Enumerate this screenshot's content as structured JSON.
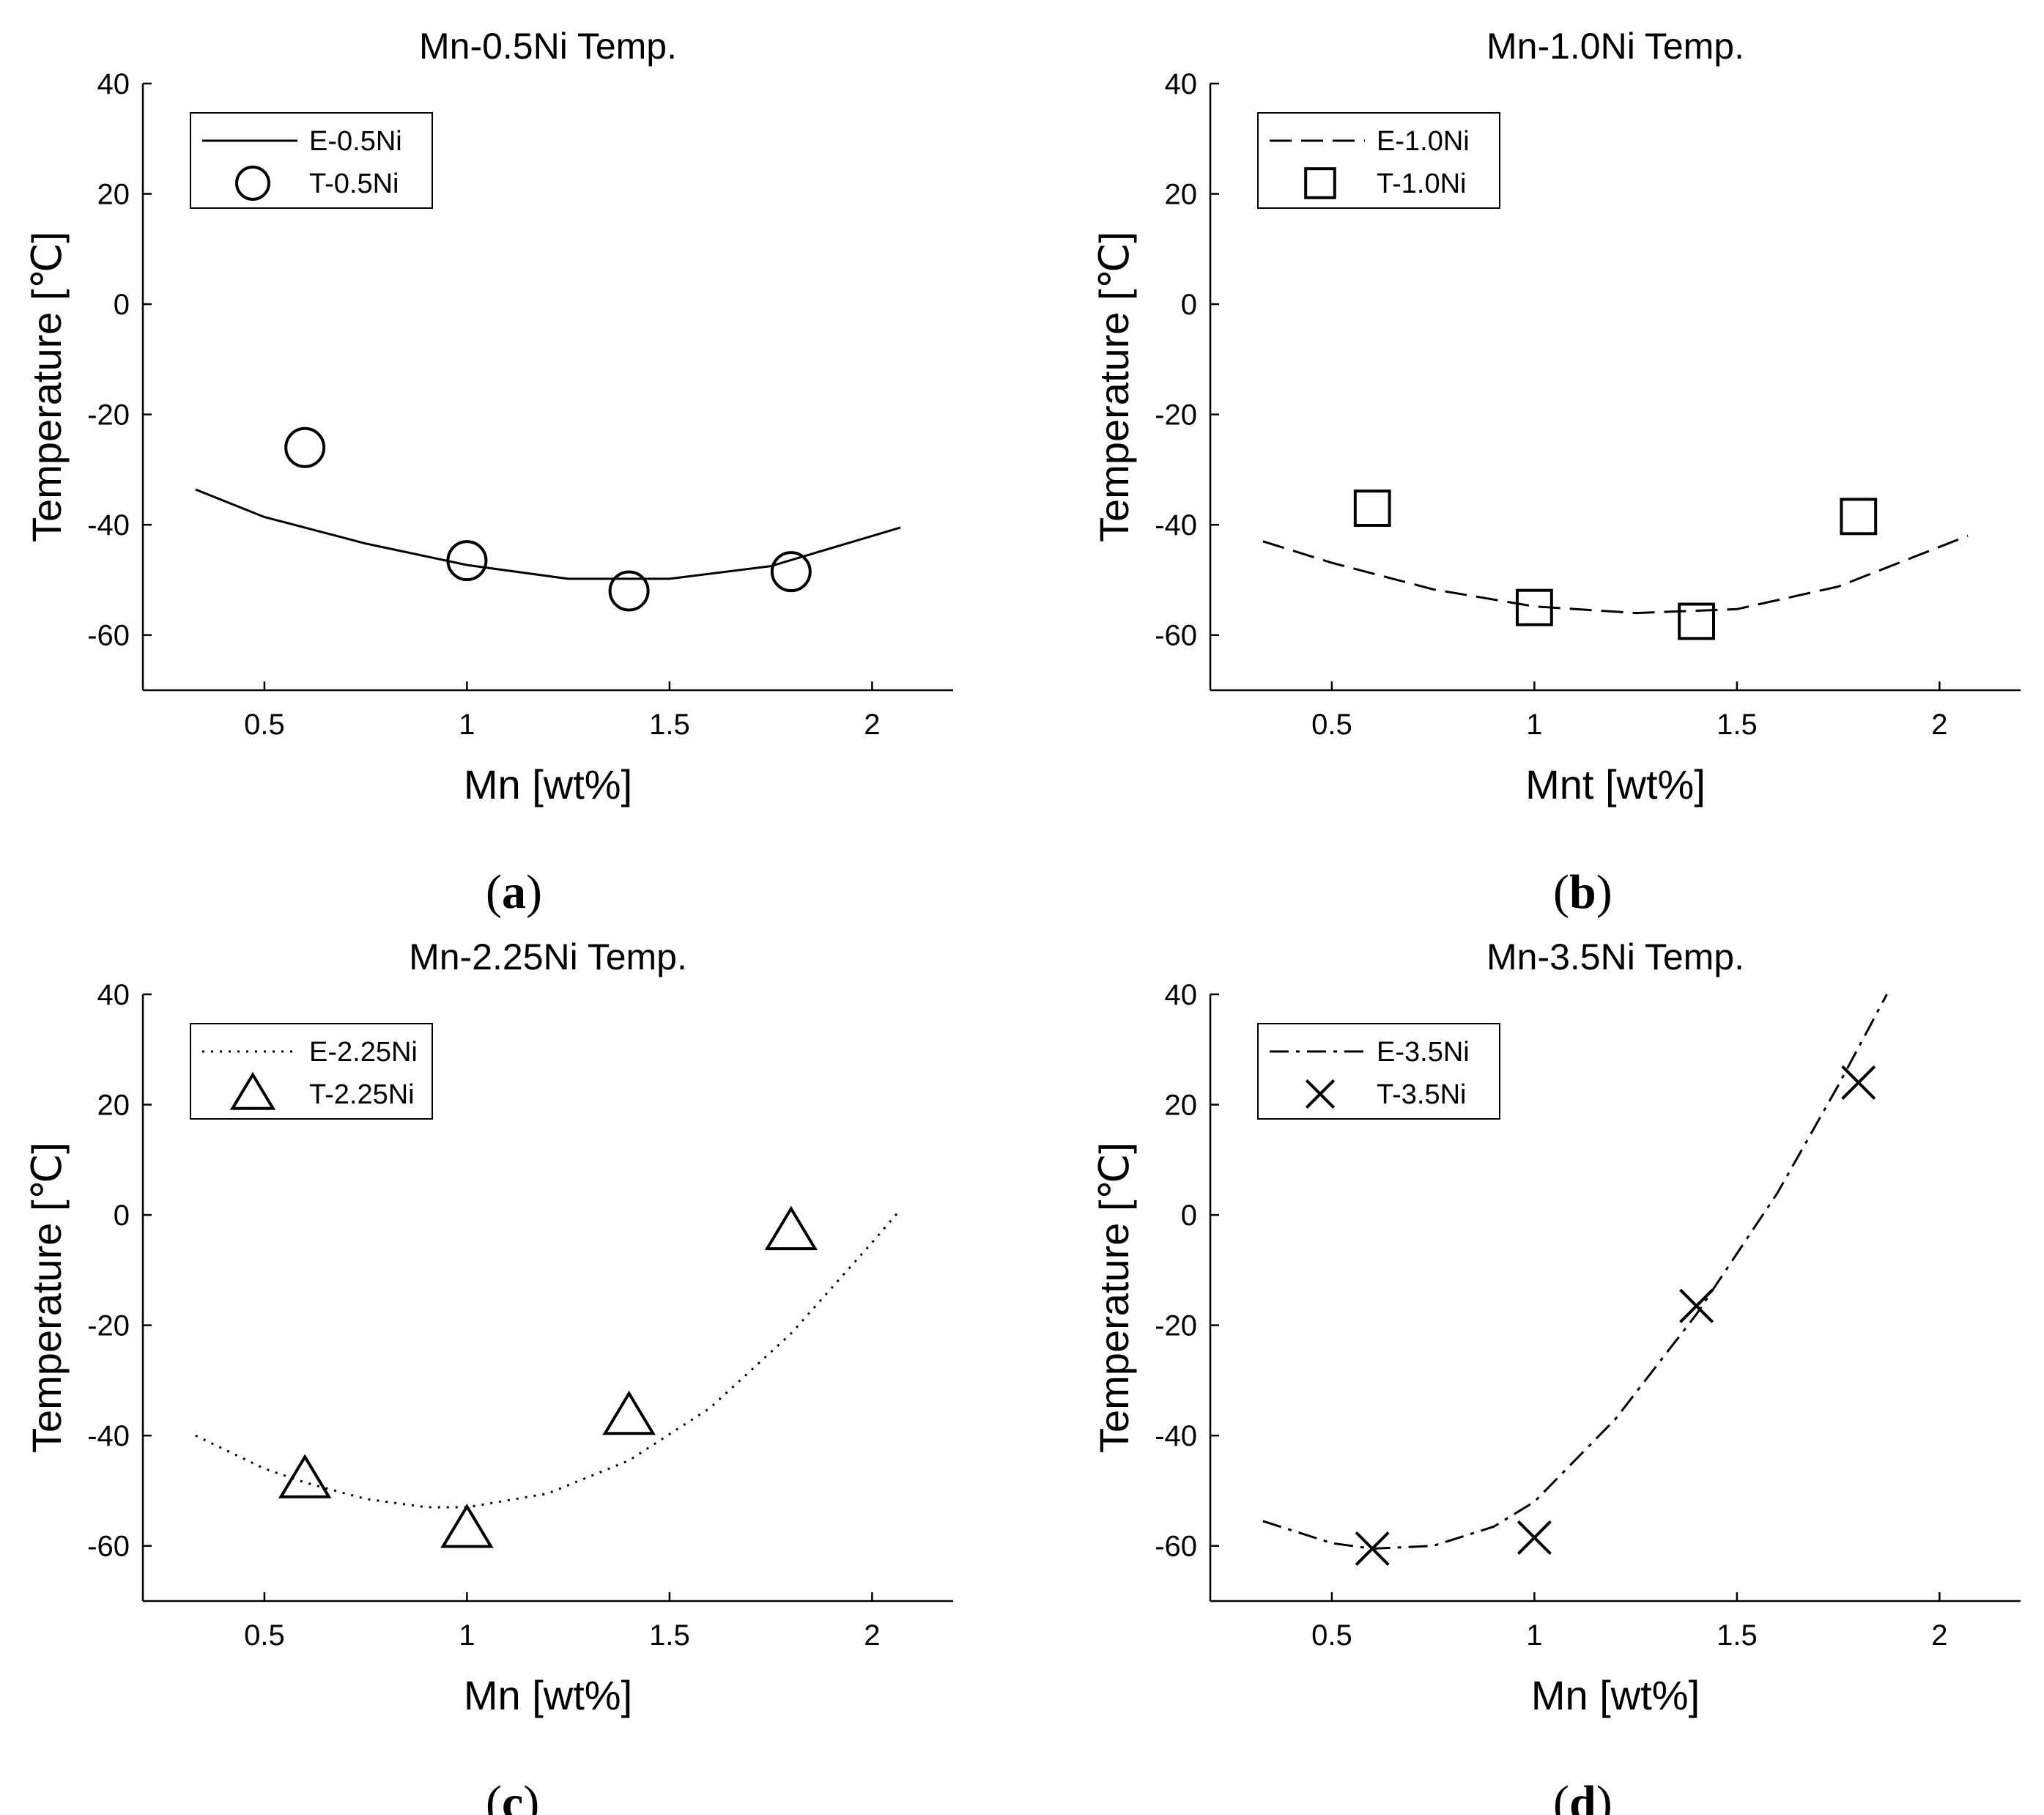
{
  "figure": {
    "background": "#ffffff",
    "ink": "#000000"
  },
  "chart_data": [
    {
      "type": "line",
      "panel_label": "a",
      "title": "Mn-0.5Ni Temp.",
      "xlabel": "Mn [wt%]",
      "ylabel": "Temperature [℃]",
      "xlim": [
        0.2,
        2.2
      ],
      "ylim": [
        -70,
        40
      ],
      "xticks": [
        0.5,
        1,
        1.5,
        2
      ],
      "xtick_labels": [
        "0.5",
        "1",
        "1.5",
        "2"
      ],
      "yticks": [
        -60,
        -40,
        -20,
        0,
        20,
        40
      ],
      "ytick_labels": [
        "-60",
        "-40",
        "-20",
        "0",
        "20",
        "40"
      ],
      "grid": false,
      "legend_position": "top-left",
      "series": [
        {
          "name": "E-0.5Ni",
          "kind": "line",
          "line_style": "solid",
          "x": [
            0.33,
            0.5,
            0.75,
            1.0,
            1.25,
            1.5,
            1.75,
            2.07
          ],
          "y": [
            -33.6,
            -38.6,
            -43.4,
            -47.3,
            -49.8,
            -49.8,
            -47.5,
            -40.5
          ]
        },
        {
          "name": "T-0.5Ni",
          "kind": "scatter",
          "marker": "circle",
          "x": [
            0.6,
            1.0,
            1.4,
            1.8
          ],
          "y": [
            -26,
            -46.5,
            -52,
            -48.5
          ]
        }
      ]
    },
    {
      "type": "line",
      "panel_label": "b",
      "title": "Mn-1.0Ni Temp.",
      "xlabel": "Mnt [wt%]",
      "ylabel": "Temperature [℃]",
      "xlim": [
        0.2,
        2.2
      ],
      "ylim": [
        -70,
        40
      ],
      "xticks": [
        0.5,
        1,
        1.5,
        2
      ],
      "xtick_labels": [
        "0.5",
        "1",
        "1.5",
        "2"
      ],
      "yticks": [
        -60,
        -40,
        -20,
        0,
        20,
        40
      ],
      "ytick_labels": [
        "-60",
        "-40",
        "-20",
        "0",
        "20",
        "40"
      ],
      "grid": false,
      "legend_position": "top-left",
      "series": [
        {
          "name": "E-1.0Ni",
          "kind": "line",
          "line_style": "dashed",
          "x": [
            0.33,
            0.5,
            0.75,
            1.0,
            1.25,
            1.5,
            1.75,
            2.07
          ],
          "y": [
            -43,
            -46.9,
            -51.7,
            -54.8,
            -56.0,
            -55.3,
            -51.2,
            -42
          ]
        },
        {
          "name": "T-1.0Ni",
          "kind": "scatter",
          "marker": "square",
          "x": [
            0.6,
            1.0,
            1.4,
            1.8
          ],
          "y": [
            -37,
            -55,
            -57.5,
            -38.5
          ]
        }
      ]
    },
    {
      "type": "line",
      "panel_label": "c",
      "title": "Mn-2.25Ni Temp.",
      "xlabel": "Mn [wt%]",
      "ylabel": "Temperature [℃]",
      "xlim": [
        0.2,
        2.2
      ],
      "ylim": [
        -70,
        40
      ],
      "xticks": [
        0.5,
        1,
        1.5,
        2
      ],
      "xtick_labels": [
        "0.5",
        "1",
        "1.5",
        "2"
      ],
      "yticks": [
        -60,
        -40,
        -20,
        0,
        20,
        40
      ],
      "ytick_labels": [
        "-60",
        "-40",
        "-20",
        "0",
        "20",
        "40"
      ],
      "grid": false,
      "legend_position": "top-left",
      "series": [
        {
          "name": "E-2.25Ni",
          "kind": "line",
          "line_style": "dotted",
          "x": [
            0.33,
            0.5,
            0.6,
            0.75,
            0.9,
            1.0,
            1.2,
            1.4,
            1.6,
            1.8,
            2.0,
            2.07
          ],
          "y": [
            -40,
            -46,
            -48.5,
            -51.5,
            -53,
            -53,
            -50.5,
            -44.5,
            -35,
            -21.5,
            -5,
            1
          ]
        },
        {
          "name": "T-2.25Ni",
          "kind": "scatter",
          "marker": "triangle",
          "x": [
            0.6,
            1.0,
            1.4,
            1.8
          ],
          "y": [
            -48,
            -57,
            -36.5,
            -3
          ]
        }
      ]
    },
    {
      "type": "line",
      "panel_label": "d",
      "title": "Mn-3.5Ni Temp.",
      "xlabel": "Mn [wt%]",
      "ylabel": "Temperature [℃]",
      "xlim": [
        0.2,
        2.2
      ],
      "ylim": [
        -70,
        40
      ],
      "xticks": [
        0.5,
        1,
        1.5,
        2
      ],
      "xtick_labels": [
        "0.5",
        "1",
        "1.5",
        "2"
      ],
      "yticks": [
        -60,
        -40,
        -20,
        0,
        20,
        40
      ],
      "ytick_labels": [
        "-60",
        "-40",
        "-20",
        "0",
        "20",
        "40"
      ],
      "grid": false,
      "legend_position": "top-left",
      "series": [
        {
          "name": "E-3.5Ni",
          "kind": "line",
          "line_style": "dashdot",
          "x": [
            0.33,
            0.5,
            0.6,
            0.75,
            0.9,
            1.0,
            1.2,
            1.4,
            1.6,
            1.75,
            1.87
          ],
          "y": [
            -55.5,
            -59.5,
            -60.5,
            -60,
            -56.5,
            -52,
            -37,
            -18,
            4,
            23.5,
            40
          ]
        },
        {
          "name": "T-3.5Ni",
          "kind": "scatter",
          "marker": "x",
          "x": [
            0.6,
            1.0,
            1.4,
            1.8
          ],
          "y": [
            -60.5,
            -58.5,
            -16.5,
            24
          ]
        }
      ]
    }
  ]
}
